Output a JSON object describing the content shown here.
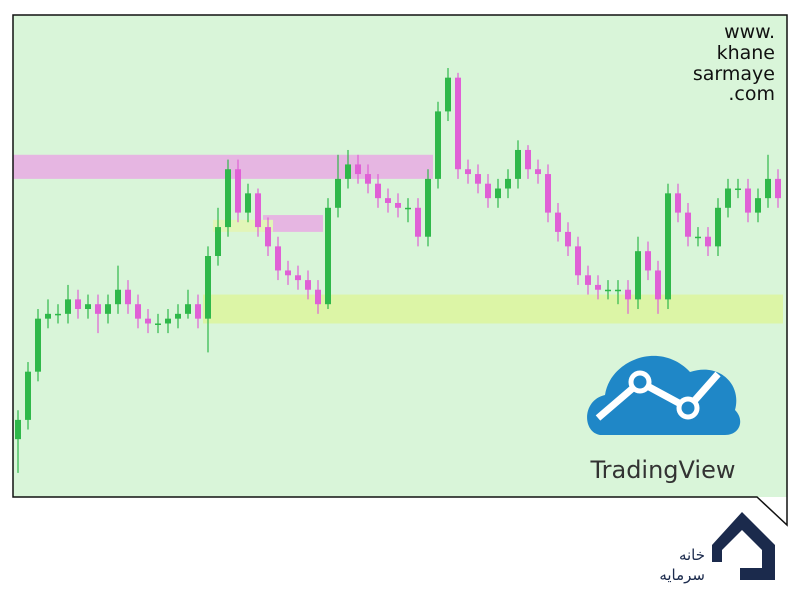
{
  "chart_data": {
    "type": "candlestick",
    "open": [
      12,
      16,
      26,
      37,
      38,
      38,
      41,
      39,
      40,
      38,
      40,
      43,
      40,
      37,
      36,
      36,
      37,
      38,
      40,
      37,
      50,
      56,
      68,
      59,
      63,
      56,
      52,
      47,
      46,
      45,
      43,
      40,
      60,
      66,
      69,
      67,
      65,
      62,
      61,
      60,
      60,
      54,
      66,
      80,
      87,
      68,
      67,
      65,
      62,
      64,
      66,
      72,
      68,
      67,
      59,
      55,
      52,
      46,
      44,
      43,
      43,
      43,
      41,
      51,
      47,
      41,
      63,
      59,
      54,
      54,
      52,
      60,
      64,
      64,
      59,
      62,
      66
    ],
    "high": [
      18,
      28,
      39,
      41,
      40,
      44,
      43,
      42,
      42,
      42,
      48,
      45,
      42,
      39,
      38,
      39,
      40,
      43,
      42,
      52,
      60,
      70,
      70,
      65,
      64,
      58,
      54,
      49,
      48,
      47,
      45,
      62,
      71,
      72,
      71,
      69,
      67,
      64,
      63,
      62,
      62,
      68,
      82,
      89,
      88,
      70,
      69,
      67,
      66,
      68,
      74,
      73,
      70,
      69,
      61,
      57,
      54,
      48,
      46,
      45,
      45,
      45,
      54,
      53,
      49,
      65,
      65,
      61,
      56,
      56,
      62,
      66,
      66,
      66,
      64,
      71,
      68
    ],
    "low": [
      5,
      14,
      24,
      35,
      36,
      36,
      37,
      37,
      34,
      36,
      38,
      38,
      35,
      34,
      34,
      34,
      35,
      37,
      35,
      30,
      48,
      54,
      57,
      57,
      54,
      50,
      45,
      44,
      43,
      41,
      38,
      39,
      58,
      64,
      65,
      63,
      60,
      59,
      58,
      57,
      52,
      52,
      64,
      78,
      66,
      65,
      63,
      60,
      60,
      62,
      64,
      66,
      65,
      57,
      53,
      50,
      44,
      42,
      41,
      41,
      40,
      38,
      39,
      45,
      38,
      39,
      57,
      52,
      52,
      50,
      50,
      58,
      62,
      57,
      57,
      60,
      60
    ],
    "close": [
      16,
      26,
      37,
      38,
      38,
      41,
      39,
      40,
      38,
      40,
      43,
      40,
      37,
      36,
      36,
      37,
      38,
      40,
      37,
      50,
      56,
      68,
      59,
      63,
      56,
      52,
      47,
      46,
      45,
      43,
      40,
      60,
      66,
      69,
      67,
      65,
      62,
      61,
      60,
      60,
      54,
      66,
      80,
      87,
      68,
      67,
      65,
      62,
      64,
      66,
      72,
      68,
      67,
      59,
      55,
      52,
      46,
      44,
      43,
      43,
      43,
      41,
      51,
      47,
      41,
      63,
      59,
      54,
      54,
      52,
      60,
      64,
      64,
      59,
      62,
      66,
      62
    ],
    "up_color": "#2fb84a",
    "down_color": "#e060d6",
    "background": "#d9f5d9",
    "ylim": [
      0,
      100
    ],
    "zones": [
      {
        "low": 66,
        "high": 71,
        "start": 0,
        "end": 41,
        "color": "#e6b6e2"
      },
      {
        "low": 55,
        "high": 58.5,
        "start": 25,
        "end": 30,
        "color": "#e6b6e2"
      },
      {
        "low": 55,
        "high": 57.5,
        "start": 20,
        "end": 25,
        "color": "#e2f5b8"
      },
      {
        "low": 36,
        "high": 42,
        "start": 19,
        "end": 76,
        "color": "#dcf5a6"
      }
    ]
  },
  "watermark": [
    "www.",
    "khane",
    "sarmaye",
    ".com"
  ],
  "brand": "TradingView",
  "logo_text": [
    "خانه",
    "سرمایه"
  ]
}
